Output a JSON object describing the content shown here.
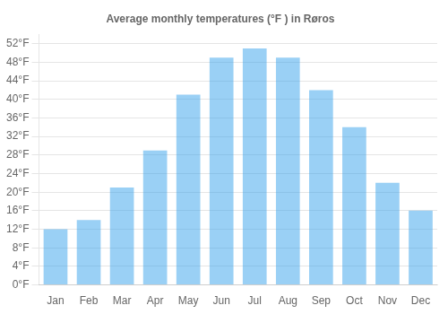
{
  "chart_data": {
    "type": "bar",
    "title": "Average monthly temperatures (°F ) in Røros",
    "categories": [
      "Jan",
      "Feb",
      "Mar",
      "Apr",
      "May",
      "Jun",
      "Jul",
      "Aug",
      "Sep",
      "Oct",
      "Nov",
      "Dec"
    ],
    "values": [
      12,
      14,
      21,
      29,
      41,
      49,
      51,
      49,
      42,
      34,
      22,
      16
    ],
    "ylim": [
      0,
      54
    ],
    "yticks": [
      {
        "value": 0,
        "label": "0°F"
      },
      {
        "value": 4,
        "label": "4°F"
      },
      {
        "value": 8,
        "label": "8°F"
      },
      {
        "value": 12,
        "label": "12°F"
      },
      {
        "value": 16,
        "label": "16°F"
      },
      {
        "value": 20,
        "label": "20°F"
      },
      {
        "value": 24,
        "label": "24°F"
      },
      {
        "value": 28,
        "label": "28°F"
      },
      {
        "value": 32,
        "label": "32°F"
      },
      {
        "value": 36,
        "label": "36°F"
      },
      {
        "value": 40,
        "label": "40°F"
      },
      {
        "value": 44,
        "label": "44°F"
      },
      {
        "value": 48,
        "label": "48°F"
      },
      {
        "value": 52,
        "label": "52°F"
      }
    ],
    "grid": true
  }
}
